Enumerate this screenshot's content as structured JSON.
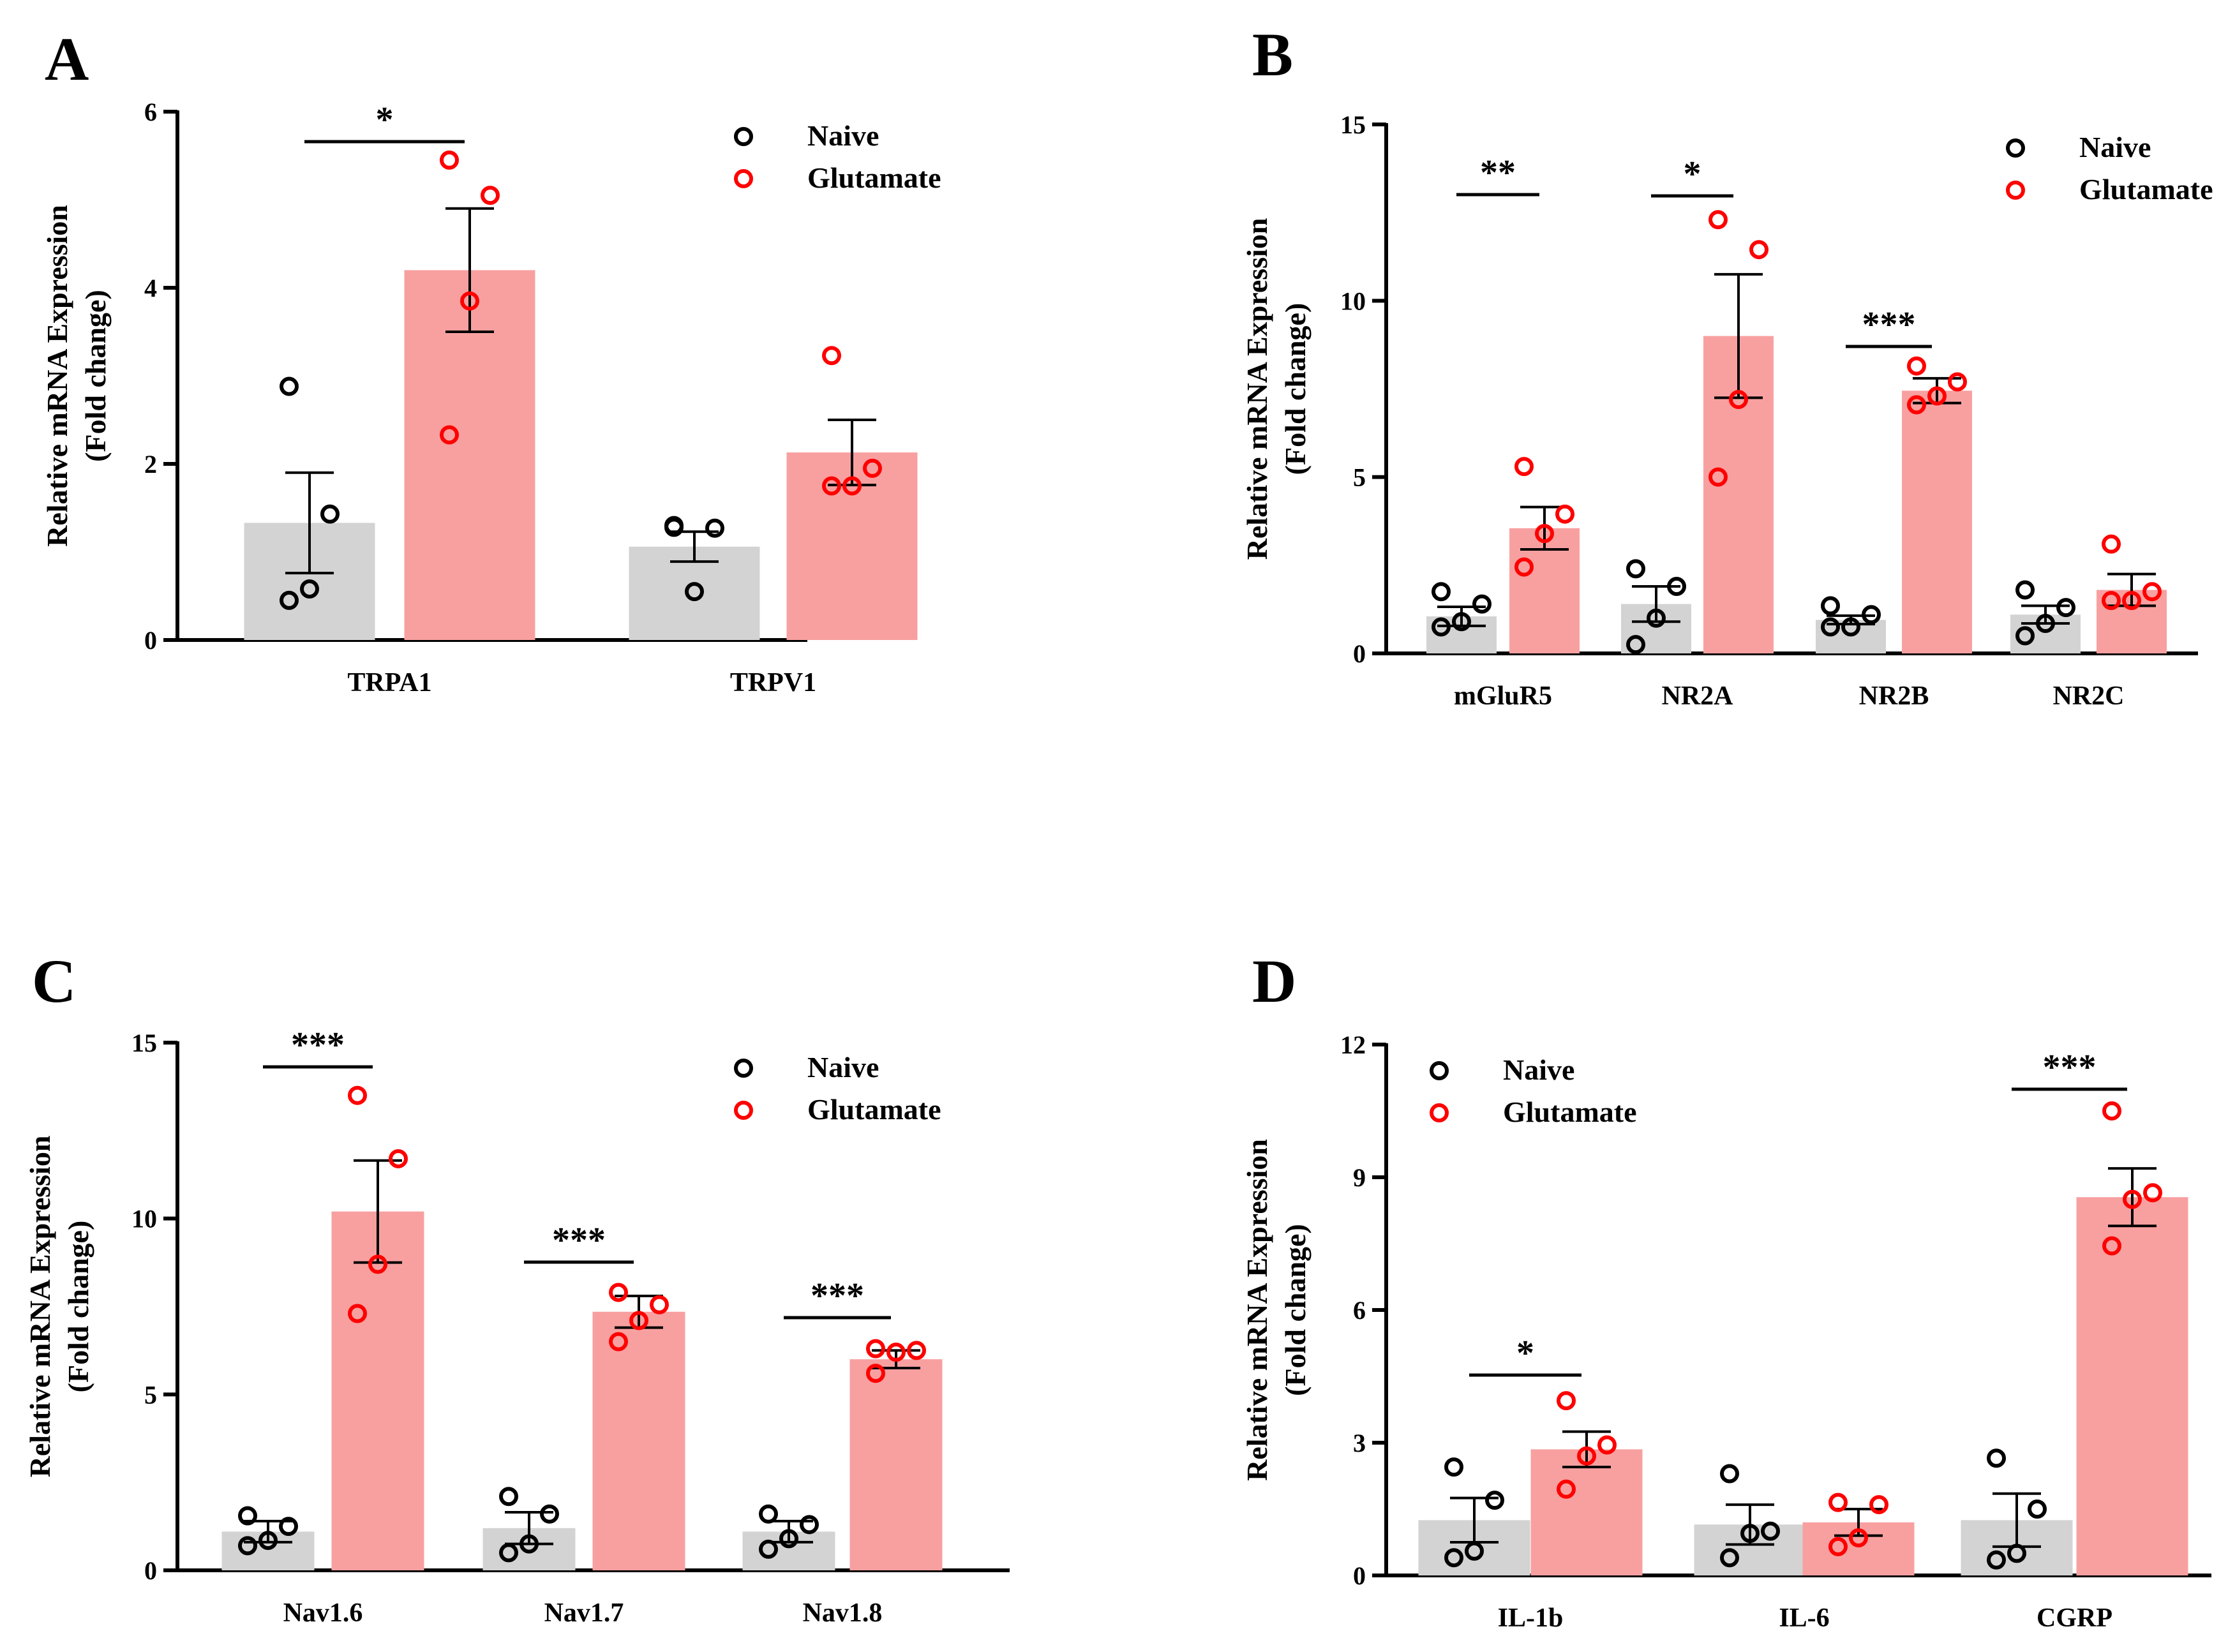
{
  "legend_entries": [
    "Naive",
    "Glutamate"
  ],
  "colors": {
    "naive_bar": "#d3d3d3",
    "naive_dot": "#000000",
    "glut_bar": "#f8a0a0",
    "glut_dot": "#ff0000"
  },
  "chart_data": [
    {
      "panel": "A",
      "type": "bar",
      "legend": "top-right",
      "ylabel": "Relative mRNA Expression",
      "ylabel2": "(Fold change)",
      "ylim": [
        0,
        6
      ],
      "yticks": [
        0,
        2,
        4,
        6
      ],
      "categories": [
        "TRPA1",
        "TRPV1"
      ],
      "series": [
        {
          "name": "Naive",
          "values": [
            1.33,
            1.06
          ],
          "sem": [
            0.57,
            0.17
          ],
          "points": [
            [
              2.88,
              1.43,
              0.58,
              0.45
            ],
            [
              1.3,
              1.27,
              0.55,
              1.28
            ]
          ]
        },
        {
          "name": "Glutamate",
          "values": [
            4.2,
            2.13
          ],
          "sem": [
            0.7,
            0.37
          ],
          "points": [
            [
              5.45,
              5.05,
              3.85,
              2.33
            ],
            [
              3.23,
              1.95,
              1.75,
              1.75
            ]
          ]
        }
      ],
      "significance": [
        "*",
        ""
      ]
    },
    {
      "panel": "B",
      "type": "bar",
      "legend": "top-right",
      "ylabel": "Relative mRNA Expression",
      "ylabel2": "(Fold change)",
      "ylim": [
        0,
        15
      ],
      "yticks": [
        0,
        5,
        10,
        15
      ],
      "categories": [
        "mGluR5",
        "NR2A",
        "NR2B",
        "NR2C"
      ],
      "series": [
        {
          "name": "Naive",
          "values": [
            1.05,
            1.4,
            0.95,
            1.1
          ],
          "sem": [
            0.27,
            0.5,
            0.12,
            0.25
          ],
          "points": [
            [
              1.75,
              1.4,
              0.9,
              0.75
            ],
            [
              2.4,
              1.9,
              1.0,
              0.25
            ],
            [
              1.35,
              1.1,
              0.75,
              0.75
            ],
            [
              1.8,
              1.3,
              0.85,
              0.5
            ]
          ]
        },
        {
          "name": "Glutamate",
          "values": [
            3.55,
            9.0,
            7.45,
            1.8
          ],
          "sem": [
            0.6,
            1.75,
            0.35,
            0.45
          ],
          "points": [
            [
              5.3,
              3.95,
              3.4,
              2.45
            ],
            [
              12.3,
              11.45,
              7.2,
              5.0
            ],
            [
              8.15,
              7.7,
              7.3,
              7.05
            ],
            [
              3.1,
              1.75,
              1.5,
              1.5
            ]
          ]
        }
      ],
      "significance": [
        "**",
        "*",
        "***",
        ""
      ]
    },
    {
      "panel": "C",
      "type": "bar",
      "legend": "top-right",
      "ylabel": "Relative mRNA Expression",
      "ylabel2": "(Fold change)",
      "ylim": [
        0,
        15
      ],
      "yticks": [
        0,
        5,
        10,
        15
      ],
      "categories": [
        "Nav1.6",
        "Nav1.7",
        "Nav1.8"
      ],
      "series": [
        {
          "name": "Naive",
          "values": [
            1.1,
            1.2,
            1.1
          ],
          "sem": [
            0.3,
            0.45,
            0.3
          ],
          "points": [
            [
              1.55,
              1.25,
              0.85,
              0.7
            ],
            [
              2.1,
              1.6,
              0.75,
              0.5
            ],
            [
              1.6,
              1.3,
              0.9,
              0.6
            ]
          ]
        },
        {
          "name": "Glutamate",
          "values": [
            10.2,
            7.35,
            6.0
          ],
          "sem": [
            1.45,
            0.45,
            0.25
          ],
          "points": [
            [
              13.5,
              11.7,
              8.7,
              7.3
            ],
            [
              7.9,
              7.55,
              7.1,
              6.5
            ],
            [
              6.3,
              6.25,
              6.2,
              5.6
            ]
          ]
        }
      ],
      "significance": [
        "***",
        "***",
        "***"
      ]
    },
    {
      "panel": "D",
      "type": "bar",
      "legend": "top-left",
      "ylabel": "Relative mRNA Expression",
      "ylabel2": "(Fold change)",
      "ylim": [
        0,
        12
      ],
      "yticks": [
        0,
        3,
        6,
        9,
        12
      ],
      "categories": [
        "IL-1b",
        "IL-6",
        "CGRP"
      ],
      "series": [
        {
          "name": "Naive",
          "values": [
            1.25,
            1.15,
            1.25
          ],
          "sem": [
            0.5,
            0.45,
            0.6
          ],
          "points": [
            [
              2.45,
              1.7,
              0.55,
              0.4
            ],
            [
              2.3,
              1.0,
              0.95,
              0.4
            ],
            [
              2.65,
              1.5,
              0.5,
              0.35
            ]
          ]
        },
        {
          "name": "Glutamate",
          "values": [
            2.85,
            1.2,
            8.55
          ],
          "sem": [
            0.4,
            0.3,
            0.65
          ],
          "points": [
            [
              3.95,
              2.95,
              2.7,
              1.95
            ],
            [
              1.65,
              1.6,
              0.85,
              0.65
            ],
            [
              10.5,
              8.65,
              8.5,
              7.45
            ]
          ]
        }
      ],
      "significance": [
        "*",
        "",
        "***"
      ]
    }
  ]
}
